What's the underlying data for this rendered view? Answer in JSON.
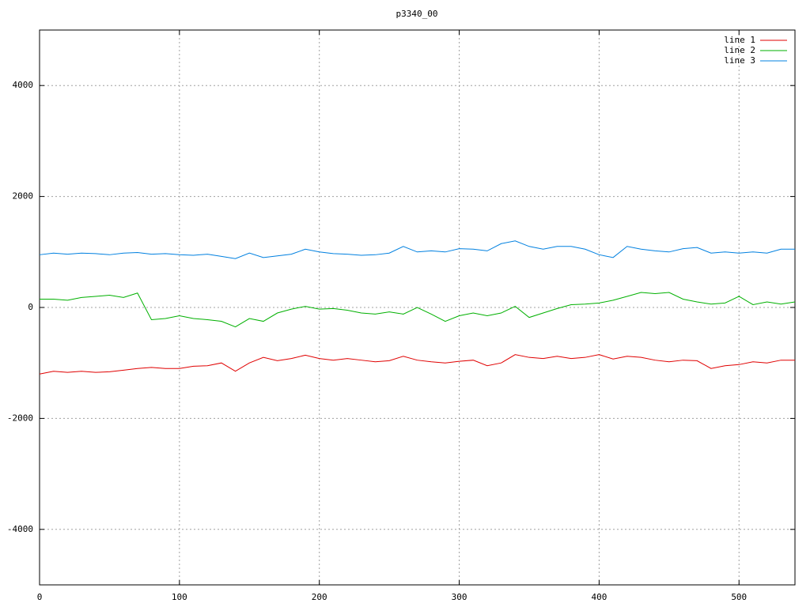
{
  "chart_data": {
    "type": "line",
    "title": "p3340_00",
    "x": [
      0,
      10,
      20,
      30,
      40,
      50,
      60,
      70,
      80,
      90,
      100,
      110,
      120,
      130,
      140,
      150,
      160,
      170,
      180,
      190,
      200,
      210,
      220,
      230,
      240,
      250,
      260,
      270,
      280,
      290,
      300,
      310,
      320,
      330,
      340,
      350,
      360,
      370,
      380,
      390,
      400,
      410,
      420,
      430,
      440,
      450,
      460,
      470,
      480,
      490,
      500,
      510,
      520,
      530,
      540
    ],
    "series": [
      {
        "name": "line 1",
        "color": "#e00000",
        "values": [
          -1200,
          -1150,
          -1170,
          -1150,
          -1170,
          -1160,
          -1130,
          -1100,
          -1080,
          -1100,
          -1100,
          -1060,
          -1050,
          -1000,
          -1150,
          -1000,
          -900,
          -960,
          -920,
          -860,
          -920,
          -950,
          -920,
          -950,
          -980,
          -960,
          -880,
          -950,
          -980,
          -1000,
          -970,
          -950,
          -1050,
          -1000,
          -850,
          -900,
          -920,
          -880,
          -920,
          -900,
          -850,
          -930,
          -880,
          -900,
          -950,
          -980,
          -950,
          -960,
          -1100,
          -1050,
          -1030,
          -980,
          -1000,
          -950,
          -950
        ]
      },
      {
        "name": "line 2",
        "color": "#00b000",
        "values": [
          150,
          150,
          130,
          180,
          200,
          220,
          180,
          260,
          -220,
          -200,
          -150,
          -200,
          -220,
          -250,
          -350,
          -200,
          -250,
          -100,
          -30,
          20,
          -30,
          -20,
          -50,
          -100,
          -120,
          -80,
          -120,
          0,
          -120,
          -250,
          -150,
          -100,
          -150,
          -100,
          20,
          -180,
          -100,
          -20,
          50,
          60,
          80,
          130,
          200,
          270,
          250,
          270,
          150,
          100,
          60,
          80,
          200,
          50,
          100,
          60,
          100
        ]
      },
      {
        "name": "line 3",
        "color": "#0080e0",
        "values": [
          950,
          980,
          960,
          980,
          970,
          950,
          980,
          990,
          960,
          970,
          950,
          940,
          960,
          920,
          880,
          980,
          900,
          930,
          960,
          1050,
          1000,
          970,
          960,
          940,
          950,
          980,
          1100,
          1000,
          1020,
          1000,
          1060,
          1050,
          1020,
          1150,
          1200,
          1100,
          1050,
          1100,
          1100,
          1050,
          950,
          900,
          1100,
          1050,
          1020,
          1000,
          1060,
          1080,
          980,
          1000,
          980,
          1000,
          980,
          1050,
          1050
        ]
      }
    ],
    "xlim": [
      0,
      540
    ],
    "ylim": [
      -5000,
      5000
    ],
    "xticks": [
      0,
      100,
      200,
      300,
      400,
      500
    ],
    "yticks": [
      -4000,
      -2000,
      0,
      2000,
      4000
    ],
    "grid": true,
    "legend": "top-right"
  }
}
